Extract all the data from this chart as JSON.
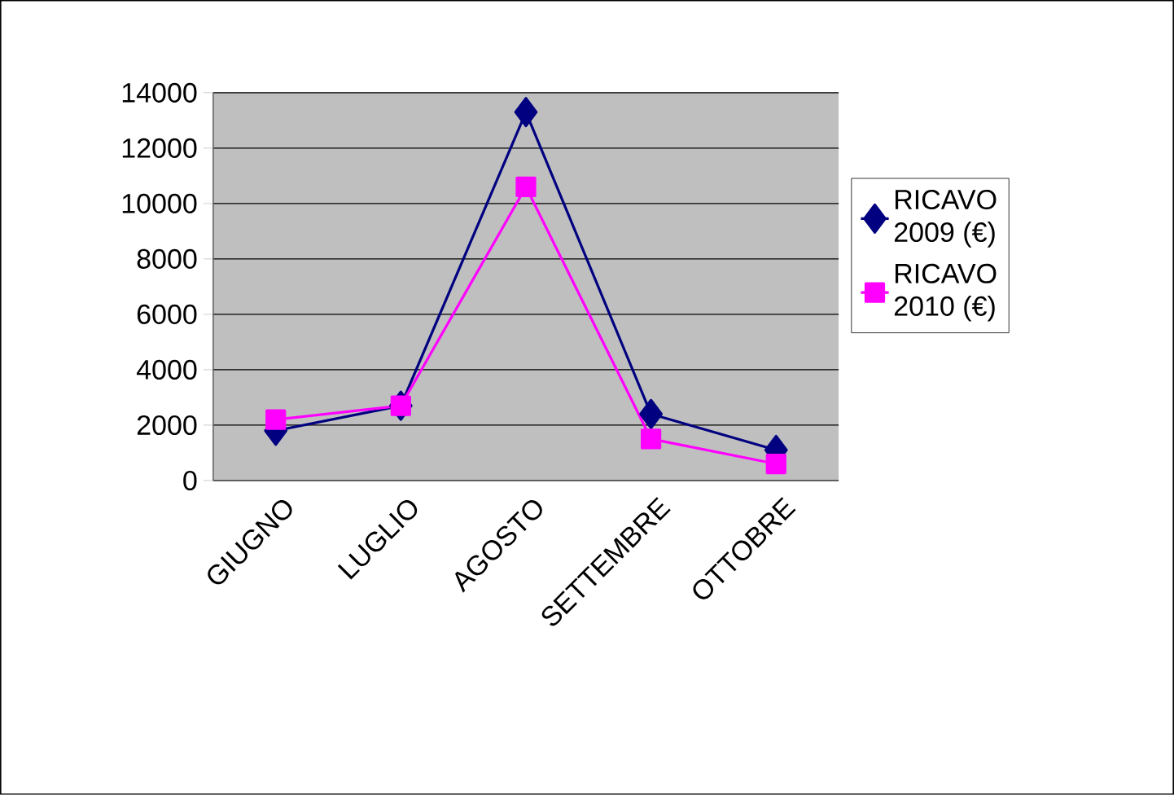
{
  "chart_data": {
    "type": "line",
    "categories": [
      "GIUGNO",
      "LUGLIO",
      "AGOSTO",
      "SETTEMBRE",
      "OTTOBRE"
    ],
    "series": [
      {
        "name": "RICAVO 2009 (€)",
        "color": "#000080",
        "marker": "diamond",
        "values": [
          1800,
          2700,
          13300,
          2400,
          1100
        ]
      },
      {
        "name": "RICAVO 2010 (€)",
        "color": "#ff00ff",
        "marker": "square",
        "values": [
          2200,
          2700,
          10600,
          1500,
          600
        ]
      }
    ],
    "ylim": [
      0,
      14000
    ],
    "yticks": [
      0,
      2000,
      4000,
      6000,
      8000,
      10000,
      12000,
      14000
    ],
    "grid": "y",
    "legend": "right",
    "line_style": "solid"
  }
}
